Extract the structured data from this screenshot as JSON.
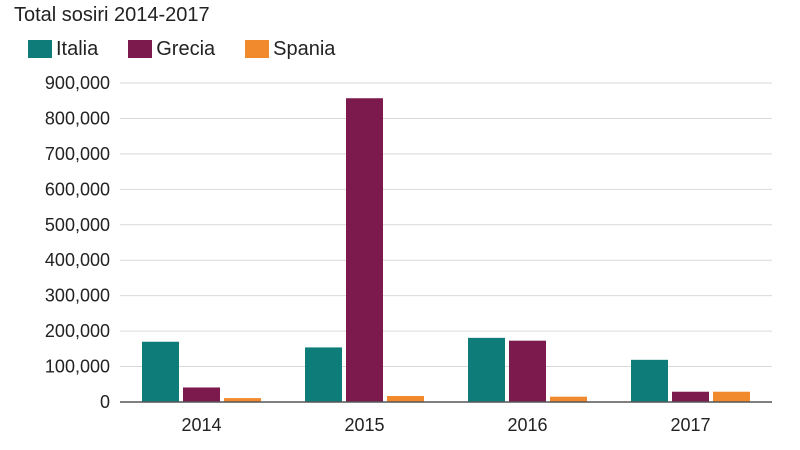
{
  "chart_data": {
    "type": "bar",
    "title": "Total sosiri 2014-2017",
    "categories": [
      "2014",
      "2015",
      "2016",
      "2017"
    ],
    "series": [
      {
        "name": "Italia",
        "color": "#0e7d7a",
        "values": [
          170000,
          154000,
          181000,
          119000
        ]
      },
      {
        "name": "Grecia",
        "color": "#7d1a4d",
        "values": [
          41000,
          857000,
          173000,
          29000
        ]
      },
      {
        "name": "Spania",
        "color": "#f08a2c",
        "values": [
          11000,
          17000,
          15000,
          29000
        ]
      }
    ],
    "ylim": [
      0,
      900000
    ],
    "yticks": [
      "0",
      "100,000",
      "200,000",
      "300,000",
      "400,000",
      "500,000",
      "600,000",
      "700,000",
      "800,000",
      "900,000"
    ],
    "grid": true,
    "legend": "top-left"
  }
}
